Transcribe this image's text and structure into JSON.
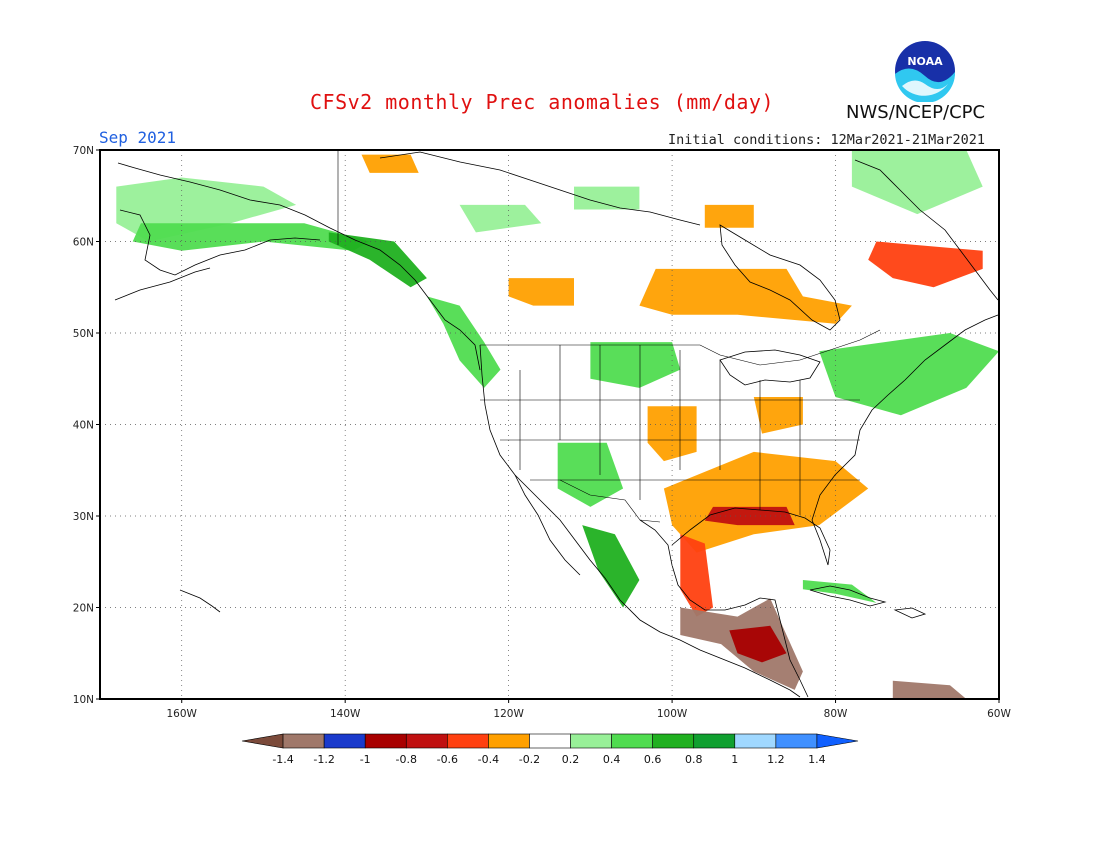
{
  "header": {
    "title": "CFSv2 monthly Prec anomalies (mm/day)",
    "month": "Sep 2021",
    "initial_conditions": "Initial conditions: 12Mar2021-21Mar2021",
    "agency": "NWS/NCEP/CPC",
    "logo_text": "NOAA"
  },
  "map": {
    "lat_ticks": [
      {
        "value": 70,
        "label": "70N"
      },
      {
        "value": 60,
        "label": "60N"
      },
      {
        "value": 50,
        "label": "50N"
      },
      {
        "value": 40,
        "label": "40N"
      },
      {
        "value": 30,
        "label": "30N"
      },
      {
        "value": 20,
        "label": "20N"
      },
      {
        "value": 10,
        "label": "10N"
      }
    ],
    "lon_ticks": [
      {
        "value": -160,
        "label": "160W"
      },
      {
        "value": -140,
        "label": "140W"
      },
      {
        "value": -120,
        "label": "120W"
      },
      {
        "value": -100,
        "label": "100W"
      },
      {
        "value": -80,
        "label": "80W"
      },
      {
        "value": -60,
        "label": "60W"
      }
    ],
    "lon_range": [
      -170,
      -60
    ],
    "lat_range": [
      10,
      70
    ],
    "grid": "dotted"
  },
  "colorbar": {
    "labels": [
      "-1.4",
      "-1.2",
      "-1",
      "-0.8",
      "-0.6",
      "-0.4",
      "-0.2",
      "0.2",
      "0.4",
      "0.6",
      "0.8",
      "1",
      "1.2",
      "1.4"
    ],
    "colors": [
      "#7b4a3a",
      "#a0786a",
      "#1a3acc",
      "#a80000",
      "#c01010",
      "#ff4010",
      "#ffa000",
      "#ffffff",
      "#98f098",
      "#50dc50",
      "#20b020",
      "#10a030",
      "#a0d8ff",
      "#4090ff",
      "#1060ff"
    ]
  },
  "anomaly_regions": [
    {
      "name": "north-slope-alaska",
      "value": 0.3,
      "points": [
        [
          -168,
          66
        ],
        [
          -160,
          67
        ],
        [
          -150,
          66
        ],
        [
          -146,
          64
        ],
        [
          -154,
          62
        ],
        [
          -164,
          60
        ],
        [
          -168,
          62
        ]
      ]
    },
    {
      "name": "southern-alaska",
      "value": 0.4,
      "points": [
        [
          -165,
          62
        ],
        [
          -156,
          62
        ],
        [
          -145,
          62
        ],
        [
          -137,
          60
        ],
        [
          -139,
          59
        ],
        [
          -150,
          60
        ],
        [
          -160,
          59
        ],
        [
          -166,
          60
        ]
      ]
    },
    {
      "name": "alaska-panhandle",
      "value": 0.6,
      "points": [
        [
          -142,
          61
        ],
        [
          -134,
          60
        ],
        [
          -130,
          56
        ],
        [
          -132,
          55
        ],
        [
          -137,
          58
        ],
        [
          -142,
          60
        ]
      ]
    },
    {
      "name": "yukon-north",
      "value": -0.3,
      "points": [
        [
          -138,
          69.5
        ],
        [
          -132,
          69.5
        ],
        [
          -131,
          67.5
        ],
        [
          -137,
          67.5
        ]
      ]
    },
    {
      "name": "northern-canada-green",
      "value": 0.3,
      "points": [
        [
          -126,
          64
        ],
        [
          -118,
          64
        ],
        [
          -116,
          62
        ],
        [
          -124,
          61
        ]
      ]
    },
    {
      "name": "nunavut-green",
      "value": 0.3,
      "points": [
        [
          -112,
          66
        ],
        [
          -104,
          66
        ],
        [
          -104,
          63.5
        ],
        [
          -112,
          63.5
        ]
      ]
    },
    {
      "name": "bc-coast",
      "value": 0.4,
      "points": [
        [
          -130,
          54
        ],
        [
          -126,
          53
        ],
        [
          -123,
          49
        ],
        [
          -121,
          46
        ],
        [
          -123,
          44
        ],
        [
          -126,
          47
        ],
        [
          -128,
          51
        ]
      ]
    },
    {
      "name": "saskatchewan",
      "value": -0.4,
      "points": [
        [
          -120,
          56
        ],
        [
          -112,
          56
        ],
        [
          -112,
          53
        ],
        [
          -117,
          53
        ],
        [
          -120,
          54
        ]
      ]
    },
    {
      "name": "ontario-hudson",
      "value": -0.4,
      "points": [
        [
          -102,
          57
        ],
        [
          -86,
          57
        ],
        [
          -84,
          54
        ],
        [
          -78,
          53
        ],
        [
          -80,
          51
        ],
        [
          -92,
          52
        ],
        [
          -100,
          52
        ],
        [
          -104,
          53
        ]
      ]
    },
    {
      "name": "keewatin",
      "value": -0.3,
      "points": [
        [
          -96,
          64
        ],
        [
          -90,
          64
        ],
        [
          -90,
          61.5
        ],
        [
          -96,
          61.5
        ]
      ]
    },
    {
      "name": "quebec-labrador",
      "value": -0.5,
      "points": [
        [
          -75,
          60
        ],
        [
          -62,
          59
        ],
        [
          -62,
          57
        ],
        [
          -68,
          55
        ],
        [
          -73,
          56
        ],
        [
          -76,
          58
        ]
      ]
    },
    {
      "name": "baffin-green",
      "value": 0.3,
      "points": [
        [
          -78,
          70
        ],
        [
          -64,
          70
        ],
        [
          -62,
          66
        ],
        [
          -70,
          63
        ],
        [
          -78,
          66
        ]
      ]
    },
    {
      "name": "maritimes-green",
      "value": 0.4,
      "points": [
        [
          -82,
          48
        ],
        [
          -66,
          50
        ],
        [
          -60,
          48
        ],
        [
          -64,
          44
        ],
        [
          -72,
          41
        ],
        [
          -80,
          43
        ]
      ]
    },
    {
      "name": "northern-plains-green",
      "value": 0.4,
      "points": [
        [
          -110,
          49
        ],
        [
          -100,
          49
        ],
        [
          -99,
          46
        ],
        [
          -104,
          44
        ],
        [
          -110,
          45
        ]
      ]
    },
    {
      "name": "southwest-green",
      "value": 0.4,
      "points": [
        [
          -114,
          38
        ],
        [
          -108,
          38
        ],
        [
          -106,
          33
        ],
        [
          -110,
          31
        ],
        [
          -114,
          33
        ]
      ]
    },
    {
      "name": "sierra-madre-green",
      "value": 0.6,
      "points": [
        [
          -111,
          29
        ],
        [
          -107,
          28
        ],
        [
          -104,
          23
        ],
        [
          -106,
          20
        ],
        [
          -109,
          24
        ]
      ]
    },
    {
      "name": "central-plains-orange",
      "value": -0.4,
      "points": [
        [
          -103,
          42
        ],
        [
          -97,
          42
        ],
        [
          -97,
          37
        ],
        [
          -101,
          36
        ],
        [
          -103,
          38
        ]
      ]
    },
    {
      "name": "great-lakes-orange",
      "value": -0.4,
      "points": [
        [
          -90,
          43
        ],
        [
          -84,
          43
        ],
        [
          -84,
          40
        ],
        [
          -89,
          39
        ]
      ]
    },
    {
      "name": "southeast-orange",
      "value": -0.4,
      "points": [
        [
          -101,
          33
        ],
        [
          -90,
          37
        ],
        [
          -80,
          36
        ],
        [
          -76,
          33
        ],
        [
          -82,
          29
        ],
        [
          -90,
          28
        ],
        [
          -97,
          26
        ],
        [
          -100,
          29
        ]
      ]
    },
    {
      "name": "gulf-coast-red",
      "value": -0.8,
      "points": [
        [
          -95,
          31
        ],
        [
          -86,
          31
        ],
        [
          -85,
          29
        ],
        [
          -92,
          29
        ],
        [
          -96,
          29.5
        ]
      ]
    },
    {
      "name": "eastern-mexico-orange",
      "value": -0.5,
      "points": [
        [
          -99,
          28
        ],
        [
          -96,
          27
        ],
        [
          -95,
          20
        ],
        [
          -97,
          19
        ],
        [
          -99,
          22
        ]
      ]
    },
    {
      "name": "southern-mexico-brown",
      "value": -1.4,
      "points": [
        [
          -99,
          20
        ],
        [
          -92,
          19
        ],
        [
          -88,
          21
        ],
        [
          -86,
          17
        ],
        [
          -84,
          13
        ],
        [
          -85,
          11
        ],
        [
          -90,
          13
        ],
        [
          -94,
          16
        ],
        [
          -99,
          17
        ]
      ]
    },
    {
      "name": "central-america-red",
      "value": -0.9,
      "points": [
        [
          -93,
          17.5
        ],
        [
          -88,
          18
        ],
        [
          -86,
          15
        ],
        [
          -89,
          14
        ],
        [
          -92,
          15
        ]
      ]
    },
    {
      "name": "venezuela-brown",
      "value": -1.4,
      "points": [
        [
          -73,
          12
        ],
        [
          -66,
          11.5
        ],
        [
          -64,
          10
        ],
        [
          -73,
          10
        ]
      ]
    },
    {
      "name": "cuba-green",
      "value": 0.5,
      "points": [
        [
          -84,
          23
        ],
        [
          -78,
          22.5
        ],
        [
          -75,
          20.5
        ],
        [
          -80,
          21.5
        ],
        [
          -84,
          22
        ]
      ]
    }
  ]
}
